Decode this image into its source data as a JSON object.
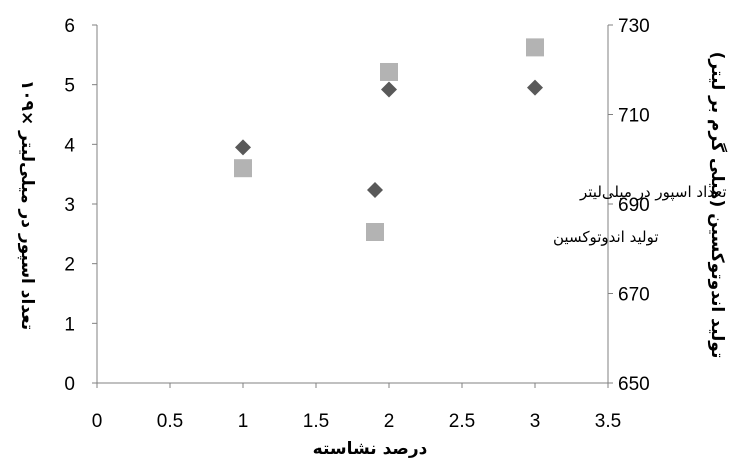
{
  "chart_data": {
    "type": "scatter",
    "xlabel": "درصد نشاسته",
    "ylabel_left": "تعداد اسپور در میلی‌لیتر ×۱۰۹",
    "ylabel_right": "تولید اندوتوکسین (میلی گرم بر لیتر)",
    "x_ticks": [
      "0",
      "0.5",
      "1",
      "1.5",
      "2",
      "2.5",
      "3",
      "3.5"
    ],
    "y_left_ticks": [
      "0",
      "1",
      "2",
      "3",
      "4",
      "5",
      "6"
    ],
    "y_right_ticks": [
      "650",
      "670",
      "690",
      "710",
      "730"
    ],
    "xlim": [
      0,
      3.5
    ],
    "ylim_left": [
      0,
      6
    ],
    "ylim_right": [
      650,
      730
    ],
    "grid": false,
    "legend_position": "center-right",
    "series": [
      {
        "name": "تعداد اسپور در میلی‌لیتر",
        "axis": "left",
        "marker": "diamond",
        "color": "#595959",
        "points": [
          [
            1,
            3.95
          ],
          [
            2,
            4.92
          ],
          [
            3,
            4.95
          ]
        ]
      },
      {
        "name": "تولید اندوتوکسین",
        "axis": "right",
        "marker": "square",
        "color": "#b3b3b3",
        "points": [
          [
            1,
            698
          ],
          [
            2,
            719.5
          ],
          [
            3,
            725
          ]
        ]
      }
    ]
  }
}
